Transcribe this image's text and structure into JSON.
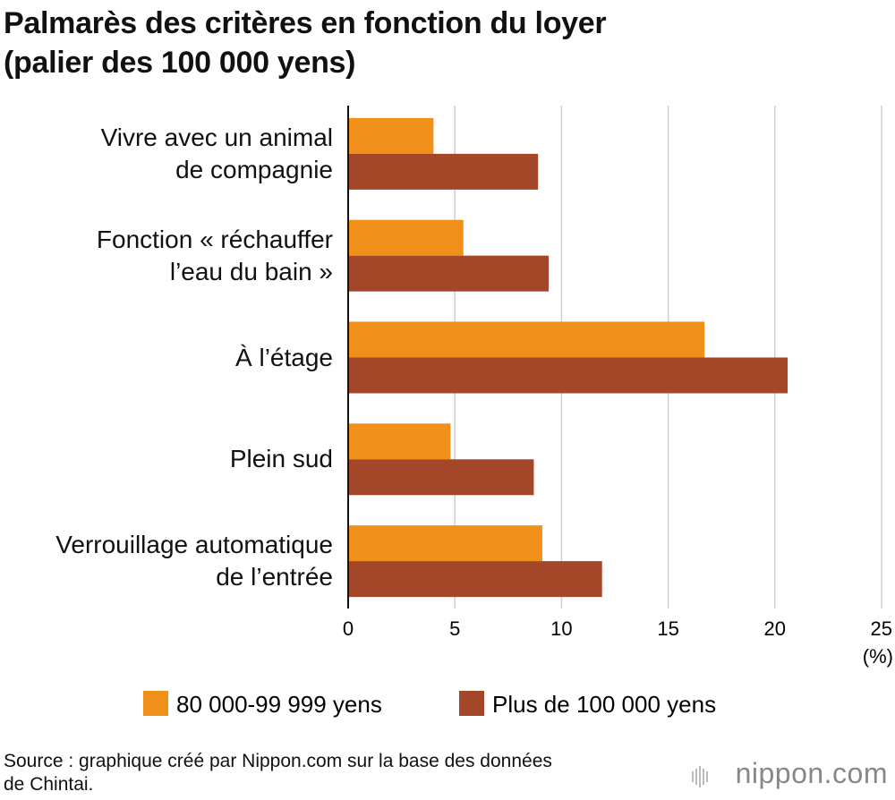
{
  "chart_data": {
    "type": "bar",
    "orientation": "horizontal",
    "title": "Palmarès des critères en fonction du loyer\n(palier des 100 000 yens)",
    "categories": [
      "Vivre avec un animal\nde compagnie",
      "Fonction « réchauffer\nl’eau du bain »",
      "À l’étage",
      "Plein sud",
      "Verrouillage automatique\nde l’entrée"
    ],
    "series": [
      {
        "name": "80 000-99 999 yens",
        "color": "#f0901a",
        "values": [
          4.0,
          5.4,
          16.7,
          4.8,
          9.1
        ]
      },
      {
        "name": "Plus de 100 000 yens",
        "color": "#a44628",
        "values": [
          8.9,
          9.4,
          20.6,
          8.7,
          11.9
        ]
      }
    ],
    "xlim": [
      0,
      25
    ],
    "xticks": [
      0,
      5,
      10,
      15,
      20,
      25
    ],
    "xlabel": "(%)",
    "grid": true,
    "legend": "bottom",
    "source": "Source : graphique créé par Nippon.com sur la base des données\nde Chintai.",
    "logo": "nippon.com"
  }
}
